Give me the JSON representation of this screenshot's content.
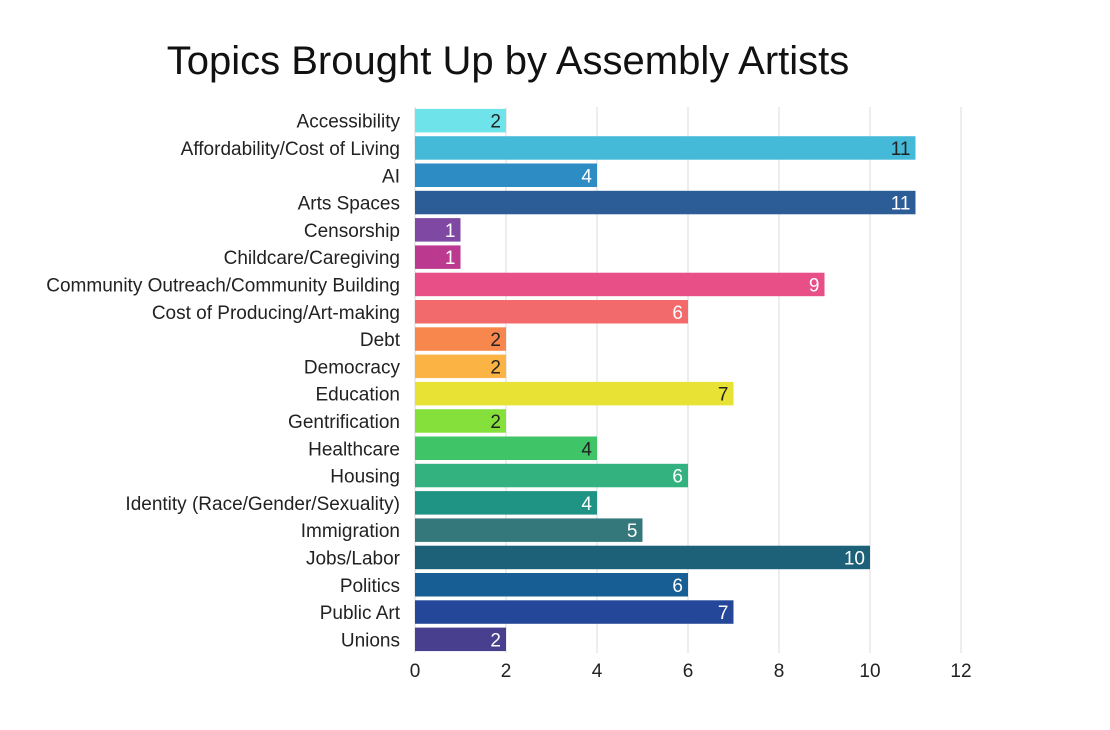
{
  "chart_data": {
    "type": "bar",
    "orientation": "horizontal",
    "title": "Topics Brought Up by Assembly Artists",
    "xlabel": "",
    "ylabel": "",
    "xlim": [
      0,
      12
    ],
    "ticks": [
      "0",
      "2",
      "4",
      "6",
      "8",
      "10",
      "12"
    ],
    "grid": true,
    "categories": [
      "Accessibility",
      "Affordability/Cost of Living",
      "AI",
      "Arts Spaces",
      "Censorship",
      "Childcare/Caregiving",
      "Community Outreach/Community Building",
      "Cost of Producing/Art-making",
      "Debt",
      "Democracy",
      "Education",
      "Gentrification",
      "Healthcare",
      "Housing",
      "Identity (Race/Gender/Sexuality)",
      "Immigration",
      "Jobs/Labor",
      "Politics",
      "Public Art",
      "Unions"
    ],
    "values": [
      2,
      11,
      4,
      11,
      1,
      1,
      9,
      6,
      2,
      2,
      7,
      2,
      4,
      6,
      4,
      5,
      10,
      6,
      7,
      2
    ],
    "value_labels": [
      "2",
      "11",
      "4",
      "11",
      "1",
      "1",
      "9",
      "6",
      "2",
      "2",
      "7",
      "2",
      "4",
      "6",
      "4",
      "5",
      "10",
      "6",
      "7",
      "2"
    ],
    "colors": [
      "#6ee3ea",
      "#45b9d8",
      "#2d8cc4",
      "#2c5d97",
      "#7e48a3",
      "#bb3a8f",
      "#e84f87",
      "#f26a6c",
      "#f7874d",
      "#fbb344",
      "#e7e233",
      "#86e03b",
      "#3fc468",
      "#33b27f",
      "#1f9384",
      "#35787b",
      "#1c6178",
      "#165e94",
      "#24479a",
      "#483f8e"
    ],
    "label_colors": [
      "#222222",
      "#222222",
      "#ffffff",
      "#ffffff",
      "#ffffff",
      "#ffffff",
      "#ffffff",
      "#ffffff",
      "#222222",
      "#222222",
      "#222222",
      "#222222",
      "#222222",
      "#ffffff",
      "#ffffff",
      "#ffffff",
      "#ffffff",
      "#ffffff",
      "#ffffff",
      "#ffffff"
    ]
  }
}
